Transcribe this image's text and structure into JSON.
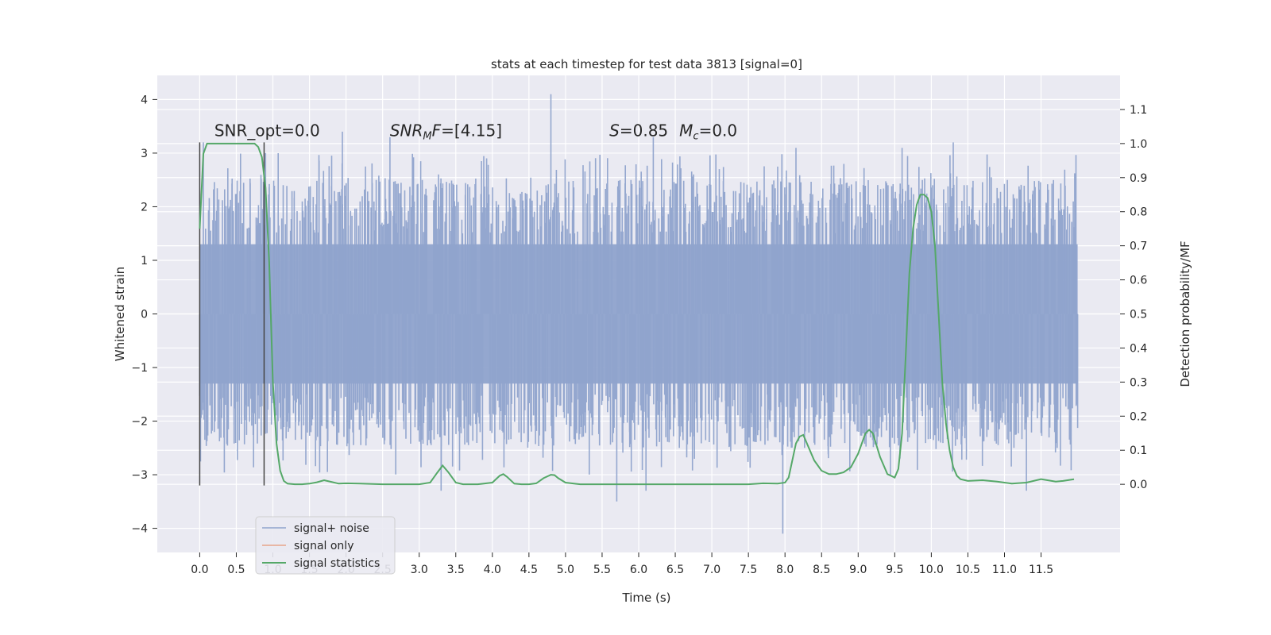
{
  "chart_data": {
    "type": "line",
    "title": "stats at each timestep for test data 3813 [signal=0]",
    "xlabel": "Time (s)",
    "ylabel": "Whitened strain",
    "ylabel_right": "Detection probability/MF",
    "xlim": [
      -0.58,
      12.58
    ],
    "ylim": [
      -4.45,
      4.45
    ],
    "ylim_right": [
      -0.2,
      1.2
    ],
    "x_ticks": [
      0.0,
      0.5,
      1.0,
      1.5,
      2.0,
      2.5,
      3.0,
      3.5,
      4.0,
      4.5,
      5.0,
      5.5,
      6.0,
      6.5,
      7.0,
      7.5,
      8.0,
      8.5,
      9.0,
      9.5,
      10.0,
      10.5,
      11.0,
      11.5
    ],
    "x_tick_labels": [
      "0.0",
      "0.5",
      "1.0",
      "1.5",
      "2.0",
      "2.5",
      "3.0",
      "3.5",
      "4.0",
      "4.5",
      "5.0",
      "5.5",
      "6.0",
      "6.5",
      "7.0",
      "7.5",
      "8.0",
      "8.5",
      "9.0",
      "9.5",
      "10.0",
      "10.5",
      "11.0",
      "11.5"
    ],
    "y_ticks": [
      -4,
      -3,
      -2,
      -1,
      0,
      1,
      2,
      3,
      4
    ],
    "y_tick_labels": [
      "−4",
      "−3",
      "−2",
      "−1",
      "0",
      "1",
      "2",
      "3",
      "4"
    ],
    "y_right_ticks": [
      0.0,
      0.1,
      0.2,
      0.3,
      0.4,
      0.5,
      0.6,
      0.7,
      0.8,
      0.9,
      1.0,
      1.1
    ],
    "y_right_tick_labels": [
      "0.0",
      "0.1",
      "0.2",
      "0.3",
      "0.4",
      "0.5",
      "0.6",
      "0.7",
      "0.8",
      "0.9",
      "1.0",
      "1.1"
    ],
    "grid": true,
    "legend_position": "lower-left",
    "colors": {
      "background": "#eaeaf2",
      "grid": "#ffffff",
      "noise": "#8fa3cc",
      "signal_only": "#e8a58a",
      "statistics": "#55a868",
      "window_lines": "#444444"
    },
    "series": [
      {
        "name": "signal+ noise",
        "kind": "noise",
        "x_range": [
          0.0,
          12.0
        ],
        "core_amplitude": 1.3,
        "typical_amplitude": 2.0,
        "peaks": [
          {
            "x": 0.05,
            "y": 3.2
          },
          {
            "x": 0.9,
            "y": 3.0
          },
          {
            "x": 1.95,
            "y": 3.4
          },
          {
            "x": 2.6,
            "y": 3.3
          },
          {
            "x": 4.8,
            "y": 4.1
          },
          {
            "x": 6.2,
            "y": 3.3
          },
          {
            "x": 8.15,
            "y": 3.1
          },
          {
            "x": 9.6,
            "y": 3.1
          },
          {
            "x": 10.3,
            "y": 3.2
          },
          {
            "x": 3.3,
            "y": -3.3
          },
          {
            "x": 5.7,
            "y": -3.5
          },
          {
            "x": 6.1,
            "y": -3.3
          },
          {
            "x": 7.97,
            "y": -4.1
          },
          {
            "x": 11.3,
            "y": -3.3
          }
        ]
      },
      {
        "name": "signal only",
        "kind": "signal",
        "x": [],
        "y": []
      },
      {
        "name": "signal statistics",
        "kind": "statistics",
        "axis": "right",
        "x": [
          0.0,
          0.05,
          0.1,
          0.15,
          0.2,
          0.3,
          0.4,
          0.5,
          0.6,
          0.7,
          0.75,
          0.8,
          0.85,
          0.9,
          0.95,
          1.0,
          1.05,
          1.1,
          1.15,
          1.2,
          1.3,
          1.4,
          1.5,
          1.6,
          1.7,
          1.8,
          1.9,
          2.0,
          2.2,
          2.5,
          2.8,
          3.0,
          3.15,
          3.25,
          3.32,
          3.4,
          3.5,
          3.6,
          3.8,
          4.0,
          4.1,
          4.15,
          4.2,
          4.3,
          4.4,
          4.5,
          4.6,
          4.7,
          4.8,
          4.85,
          4.9,
          5.0,
          5.2,
          5.5,
          6.0,
          6.5,
          7.0,
          7.5,
          7.7,
          7.9,
          8.0,
          8.05,
          8.1,
          8.15,
          8.2,
          8.25,
          8.3,
          8.4,
          8.5,
          8.6,
          8.7,
          8.8,
          8.9,
          9.0,
          9.1,
          9.15,
          9.2,
          9.3,
          9.4,
          9.5,
          9.55,
          9.6,
          9.65,
          9.7,
          9.75,
          9.8,
          9.85,
          9.9,
          9.95,
          10.0,
          10.05,
          10.1,
          10.15,
          10.2,
          10.25,
          10.3,
          10.35,
          10.4,
          10.5,
          10.7,
          10.9,
          11.1,
          11.3,
          11.5,
          11.7,
          11.8,
          11.95
        ],
        "y": [
          0.75,
          0.97,
          1.0,
          1.0,
          1.0,
          1.0,
          1.0,
          1.0,
          1.0,
          1.0,
          1.0,
          0.99,
          0.96,
          0.87,
          0.65,
          0.3,
          0.12,
          0.04,
          0.01,
          0.002,
          0.0,
          0.0,
          0.002,
          0.006,
          0.012,
          0.007,
          0.002,
          0.003,
          0.002,
          0.0,
          0.0,
          0.0,
          0.005,
          0.035,
          0.055,
          0.035,
          0.005,
          0.0,
          0.0,
          0.005,
          0.025,
          0.03,
          0.022,
          0.002,
          0.0,
          0.0,
          0.003,
          0.018,
          0.028,
          0.027,
          0.018,
          0.005,
          0.0,
          0.0,
          0.0,
          0.0,
          0.0,
          0.0,
          0.003,
          0.002,
          0.005,
          0.02,
          0.07,
          0.12,
          0.14,
          0.145,
          0.12,
          0.07,
          0.04,
          0.03,
          0.03,
          0.035,
          0.05,
          0.09,
          0.15,
          0.16,
          0.15,
          0.08,
          0.03,
          0.02,
          0.045,
          0.15,
          0.38,
          0.62,
          0.75,
          0.82,
          0.85,
          0.85,
          0.84,
          0.8,
          0.7,
          0.5,
          0.3,
          0.18,
          0.1,
          0.05,
          0.025,
          0.015,
          0.01,
          0.012,
          0.008,
          0.002,
          0.005,
          0.015,
          0.008,
          0.01,
          0.015
        ]
      }
    ],
    "window_lines": [
      {
        "x": 0.0,
        "y_start": -3.2,
        "y_end": 3.2
      },
      {
        "x": 0.88,
        "y_start": -3.2,
        "y_end": 3.2
      }
    ],
    "annotations": [
      {
        "id": "snr-opt",
        "text": "SNR_opt=0.0",
        "x": 0.2,
        "y": 3.32
      },
      {
        "id": "snr-mf",
        "text": "=[4.15]",
        "x": 2.6,
        "y": 3.32
      },
      {
        "id": "s-mc",
        "text": "=0.85",
        "x": 5.6,
        "y": 3.32
      }
    ],
    "annotation_parts": {
      "snr_mf_main": "SNR",
      "snr_mf_sub": "M",
      "snr_mf_main2": "F",
      "snr_mf_value": "=[4.15]",
      "s_symbol": "S",
      "s_value": "=0.85",
      "mc_symbol": "M",
      "mc_sub": "c",
      "mc_value": "=0.0"
    },
    "legend": [
      "signal+ noise",
      "signal only",
      "signal statistics"
    ]
  }
}
